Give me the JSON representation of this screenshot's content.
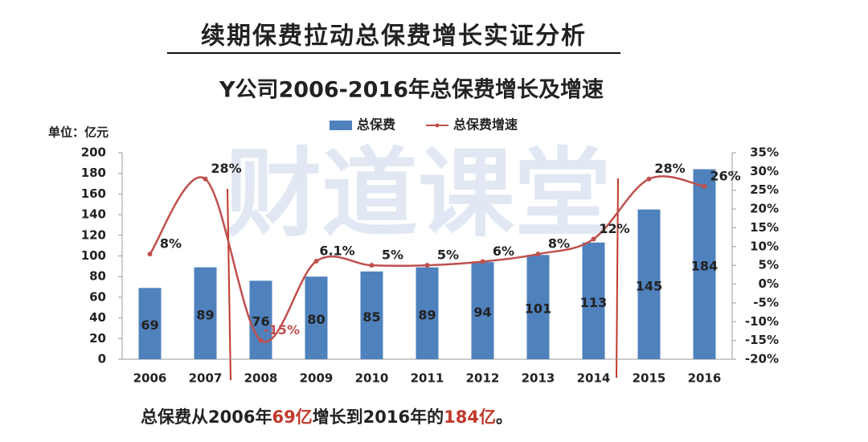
{
  "page_title": "续期保费拉动总保费增长实证分析",
  "watermark": "财道课堂",
  "chart_data": {
    "type": "bar-line",
    "title": "Y公司2006-2016年总保费增长及增速",
    "y_unit_label": "单位：亿元",
    "categories": [
      "2006",
      "2007",
      "2008",
      "2009",
      "2010",
      "2011",
      "2012",
      "2013",
      "2014",
      "2015",
      "2016"
    ],
    "series": [
      {
        "name": "总保费",
        "type": "bar",
        "color": "#4f81bd",
        "values": [
          69,
          89,
          76,
          80,
          85,
          89,
          94,
          101,
          113,
          145,
          184
        ]
      },
      {
        "name": "总保费增速",
        "type": "line",
        "axis": "y2",
        "color": "#c0504d",
        "values": [
          8,
          28,
          -15,
          6.1,
          5,
          5,
          6,
          8,
          12,
          28,
          26
        ],
        "value_labels": [
          "8%",
          "28%",
          "-15%",
          "6.1%",
          "5%",
          "5%",
          "6%",
          "8%",
          "12%",
          "28%",
          "26%"
        ]
      }
    ],
    "ylim": [
      0,
      200
    ],
    "yticks": [
      0,
      20,
      40,
      60,
      80,
      100,
      120,
      140,
      160,
      180,
      200
    ],
    "y2lim": [
      -20,
      35
    ],
    "y2ticks": [
      {
        "value": -20,
        "label": "-20%"
      },
      {
        "value": -15,
        "label": "-15%"
      },
      {
        "value": -10,
        "label": "-10%"
      },
      {
        "value": -5,
        "label": "-5%"
      },
      {
        "value": 0,
        "label": "0%"
      },
      {
        "value": 5,
        "label": "5%"
      },
      {
        "value": 10,
        "label": "10%"
      },
      {
        "value": 15,
        "label": "15%"
      },
      {
        "value": 20,
        "label": "20%"
      },
      {
        "value": 25,
        "label": "25%"
      },
      {
        "value": 30,
        "label": "30%"
      },
      {
        "value": 35,
        "label": "35%"
      }
    ],
    "grid": false,
    "legend": "top"
  },
  "footer": [
    "总保费从2006年",
    "69亿",
    "增长到2016年的",
    "184亿",
    "。"
  ]
}
